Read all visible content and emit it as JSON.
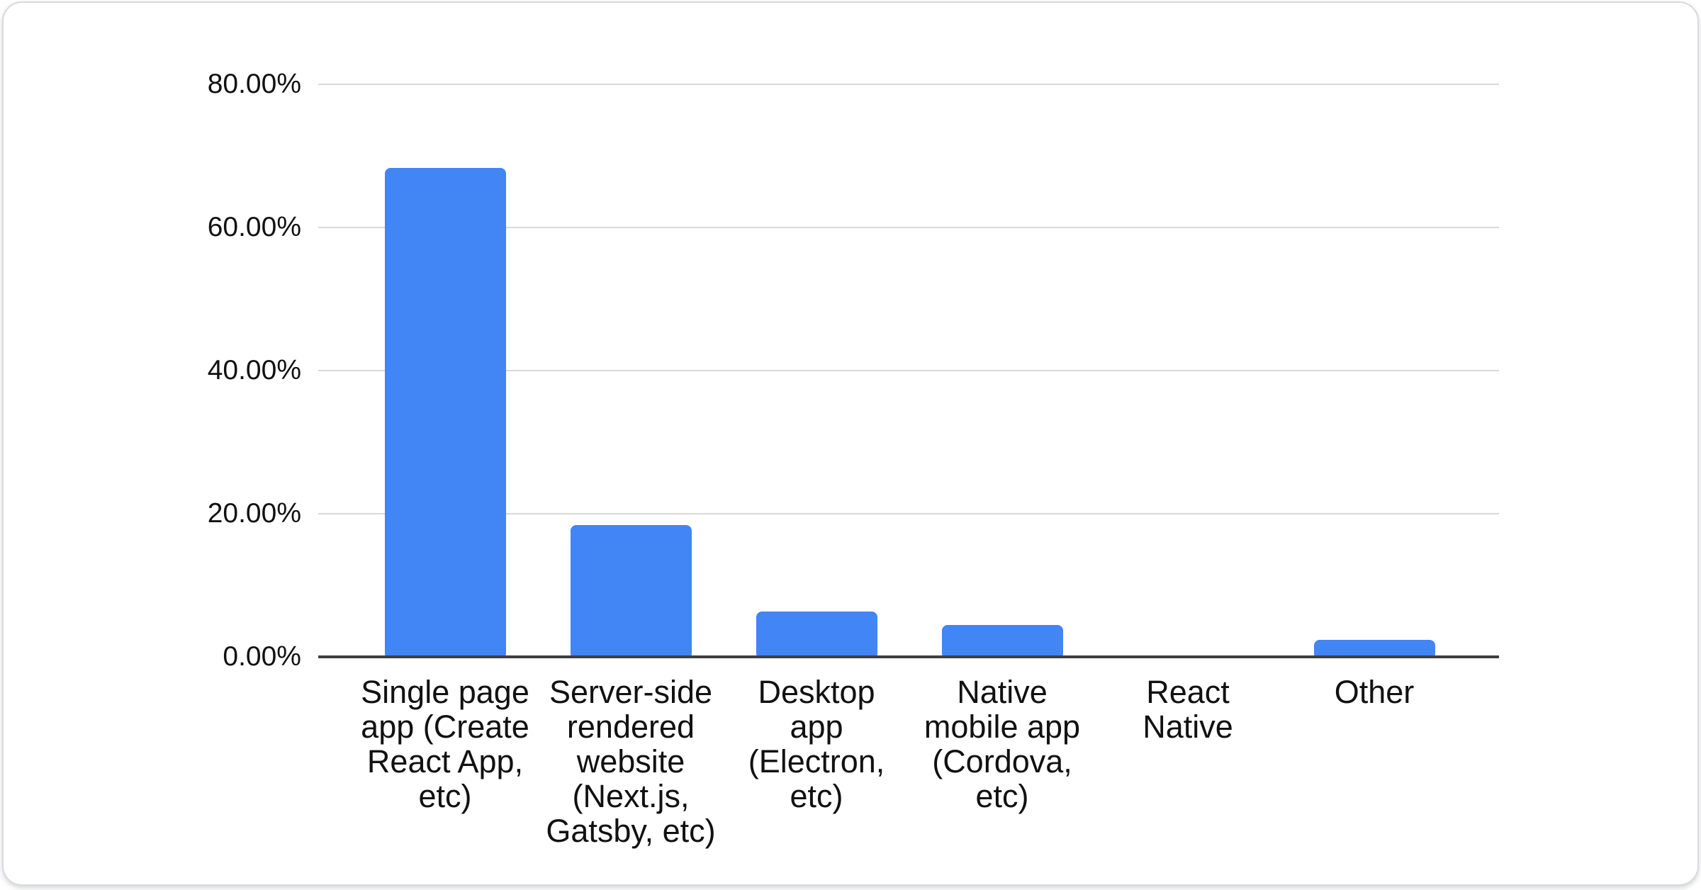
{
  "colors": {
    "bar": "#4285f4",
    "gridline": "#d9d9d9",
    "axis_line": "#3f3f3f",
    "text": "#111111",
    "card_border": "#d9dade",
    "card_background": "#ffffff"
  },
  "chart_data": {
    "type": "bar",
    "categories": [
      "Single page app (Create React App, etc)",
      "Server-side rendered website (Next.js, Gatsby, etc)",
      "Desktop app (Electron, etc)",
      "Native mobile app (Cordova, etc)",
      "React Native",
      "Other"
    ],
    "category_lines": [
      [
        "Single page",
        "app (Create",
        "React App,",
        "etc)"
      ],
      [
        "Server-side",
        "rendered",
        "website",
        "(Next.js,",
        "Gatsby, etc)"
      ],
      [
        "Desktop",
        "app",
        "(Electron,",
        "etc)"
      ],
      [
        "Native",
        "mobile app",
        "(Cordova,",
        "etc)"
      ],
      [
        "React",
        "Native"
      ],
      [
        "Other"
      ]
    ],
    "values": [
      68.3,
      18.4,
      6.3,
      4.5,
      0,
      2.4
    ],
    "y_ticks": [
      {
        "value": 80,
        "label": "80.00%"
      },
      {
        "value": 60,
        "label": "60.00%"
      },
      {
        "value": 40,
        "label": "40.00%"
      },
      {
        "value": 20,
        "label": "20.00%"
      },
      {
        "value": 0,
        "label": "0.00%"
      }
    ],
    "ylim": [
      0,
      80
    ],
    "xlabel": "",
    "ylabel": "",
    "grid": true,
    "legend_position": "none"
  }
}
